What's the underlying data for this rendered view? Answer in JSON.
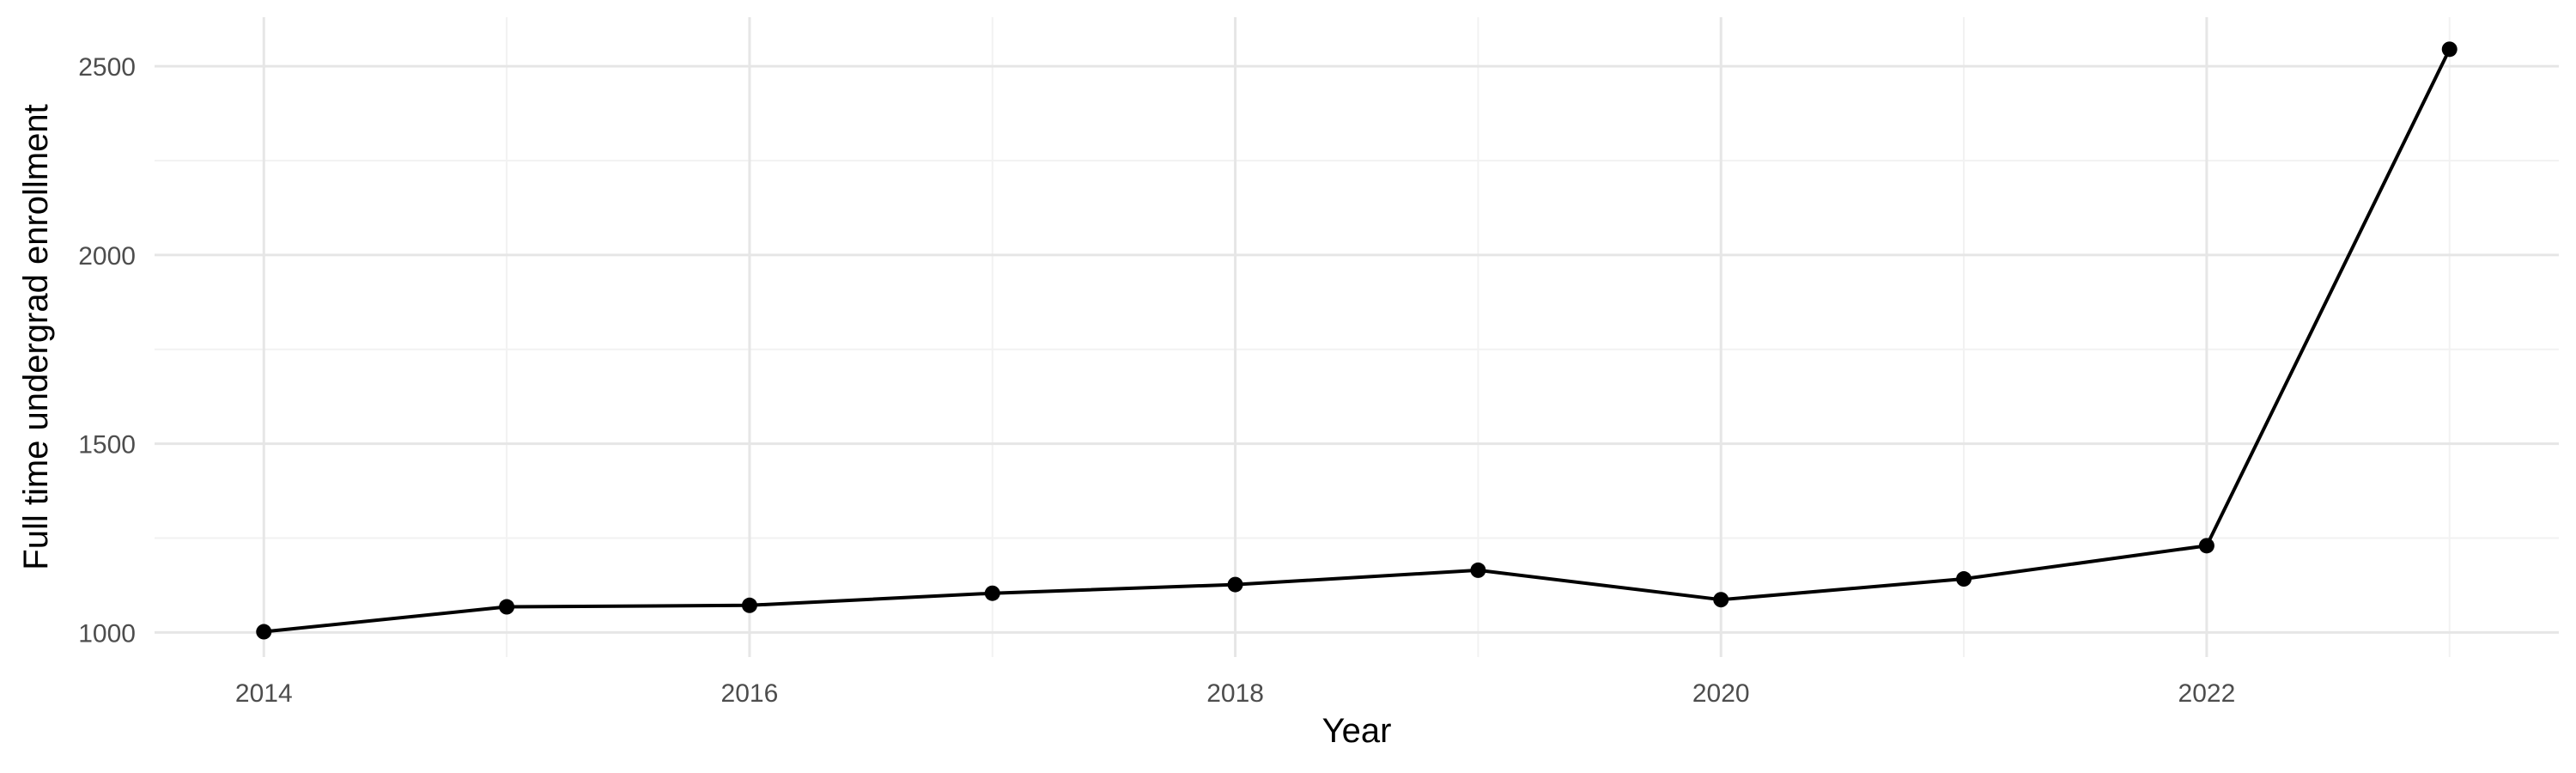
{
  "chart_data": {
    "type": "line",
    "title": "",
    "xlabel": "Year",
    "ylabel": "Full time undergrad enrollment",
    "xlim": [
      2013.55,
      2023.45
    ],
    "ylim": [
      935,
      2630
    ],
    "x_ticks": [
      2014,
      2016,
      2018,
      2020,
      2022
    ],
    "x_tick_labels": [
      "2014",
      "2016",
      "2018",
      "2020",
      "2022"
    ],
    "x_minor_ticks": [
      2015,
      2017,
      2019,
      2021,
      2023
    ],
    "y_ticks": [
      1000,
      1500,
      2000,
      2500
    ],
    "y_tick_labels": [
      "1000",
      "1500",
      "2000",
      "2500"
    ],
    "y_minor_ticks": [
      1250,
      1750,
      2250
    ],
    "grid": true,
    "legend": "none",
    "colors": {
      "line": "#000000",
      "grid_major": "#e6e6e6",
      "grid_minor": "#f2f2f2",
      "background": "#ffffff"
    },
    "series": [
      {
        "x": [
          2014,
          2015,
          2016,
          2017,
          2018,
          2019,
          2020,
          2021,
          2022,
          2023
        ],
        "values": [
          1002,
          1068,
          1072,
          1104,
          1127,
          1165,
          1087,
          1142,
          1230,
          2545
        ]
      }
    ]
  }
}
